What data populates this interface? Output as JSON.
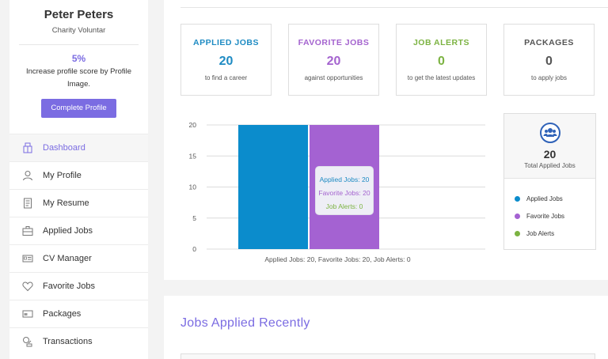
{
  "profile": {
    "name": "Peter Peters",
    "role": "Charity Voluntar",
    "score_percent": "5%",
    "score_text": "Increase profile score by Profile Image.",
    "complete_button": "Complete Profile"
  },
  "menu": [
    {
      "label": "Dashboard",
      "icon": "dashboard-icon",
      "active": true
    },
    {
      "label": "My Profile",
      "icon": "user-icon"
    },
    {
      "label": "My Resume",
      "icon": "document-icon"
    },
    {
      "label": "Applied Jobs",
      "icon": "briefcase-icon"
    },
    {
      "label": "CV Manager",
      "icon": "id-card-icon"
    },
    {
      "label": "Favorite Jobs",
      "icon": "heart-icon"
    },
    {
      "label": "Packages",
      "icon": "package-icon"
    },
    {
      "label": "Transactions",
      "icon": "transactions-icon"
    }
  ],
  "stats": [
    {
      "title": "APPLIED JOBS",
      "value": "20",
      "sub": "to find a career",
      "color": "#1e8bc3"
    },
    {
      "title": "FAVORITE JOBS",
      "value": "20",
      "sub": "against opportunities",
      "color": "#a463cf"
    },
    {
      "title": "JOB ALERTS",
      "value": "0",
      "sub": "to get the latest updates",
      "color": "#7cb342"
    },
    {
      "title": "PACKAGES",
      "value": "0",
      "sub": "to apply jobs",
      "color": "#555555"
    }
  ],
  "chart_data": {
    "type": "bar",
    "categories": [
      "Applied Jobs",
      "Favorite Jobs",
      "Job Alerts"
    ],
    "values": [
      20,
      20,
      0
    ],
    "colors": [
      "#0b8ccc",
      "#a462d2",
      "#7cb342"
    ],
    "yticks": [
      "0",
      "5",
      "10",
      "15",
      "20"
    ],
    "ylim": [
      0,
      20
    ],
    "caption": "Applied Jobs: 20, Favorite Jobs: 20, Job Alerts: 0",
    "tooltip": [
      "Applied Jobs: 20",
      "Favorite Jobs: 20",
      "Job Alerts: 0"
    ],
    "grid": true
  },
  "legend": {
    "icon": "users-icon",
    "total": "20",
    "total_label": "Total Applied Jobs",
    "items": [
      {
        "label": "Applied Jobs",
        "color": "#0b8ccc"
      },
      {
        "label": "Favorite Jobs",
        "color": "#a462d2"
      },
      {
        "label": "Job Alerts",
        "color": "#7cb342"
      }
    ]
  },
  "recent": {
    "title": "Jobs Applied Recently"
  }
}
